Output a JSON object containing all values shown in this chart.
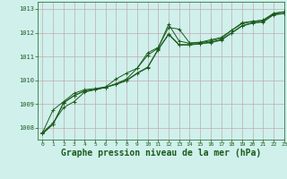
{
  "background_color": "#d0f0ec",
  "grid_color": "#c0aab0",
  "line_color": "#1a5c1a",
  "marker_color": "#1a5c1a",
  "title": "Graphe pression niveau de la mer (hPa)",
  "title_fontsize": 7,
  "xlim": [
    -0.5,
    23
  ],
  "ylim": [
    1007.5,
    1013.3
  ],
  "yticks": [
    1008,
    1009,
    1010,
    1011,
    1012,
    1013
  ],
  "xticks": [
    0,
    1,
    2,
    3,
    4,
    5,
    6,
    7,
    8,
    9,
    10,
    11,
    12,
    13,
    14,
    15,
    16,
    17,
    18,
    19,
    20,
    21,
    22,
    23
  ],
  "series": [
    [
      1007.8,
      1008.2,
      1008.85,
      1009.1,
      1009.5,
      1009.6,
      1009.7,
      1009.85,
      1010.05,
      1010.5,
      1011.05,
      1011.35,
      1012.35,
      1011.65,
      1011.55,
      1011.58,
      1011.65,
      1011.75,
      1012.1,
      1012.42,
      1012.48,
      1012.52,
      1012.8,
      1012.88
    ],
    [
      1007.8,
      1008.75,
      1009.1,
      1009.45,
      1009.6,
      1009.65,
      1009.72,
      1010.05,
      1010.3,
      1010.5,
      1011.15,
      1011.38,
      1012.22,
      1012.15,
      1011.57,
      1011.6,
      1011.7,
      1011.8,
      1012.1,
      1012.38,
      1012.47,
      1012.53,
      1012.82,
      1012.88
    ],
    [
      1007.75,
      1008.15,
      1009.05,
      1009.35,
      1009.55,
      1009.6,
      1009.7,
      1009.85,
      1010.0,
      1010.3,
      1010.55,
      1011.3,
      1011.95,
      1011.5,
      1011.5,
      1011.55,
      1011.6,
      1011.7,
      1012.0,
      1012.3,
      1012.42,
      1012.47,
      1012.77,
      1012.82
    ],
    [
      1007.75,
      1008.15,
      1009.05,
      1009.35,
      1009.55,
      1009.6,
      1009.7,
      1009.82,
      1009.98,
      1010.28,
      1010.52,
      1011.28,
      1011.92,
      1011.48,
      1011.48,
      1011.53,
      1011.58,
      1011.68,
      1011.98,
      1012.28,
      1012.4,
      1012.45,
      1012.75,
      1012.8
    ]
  ]
}
